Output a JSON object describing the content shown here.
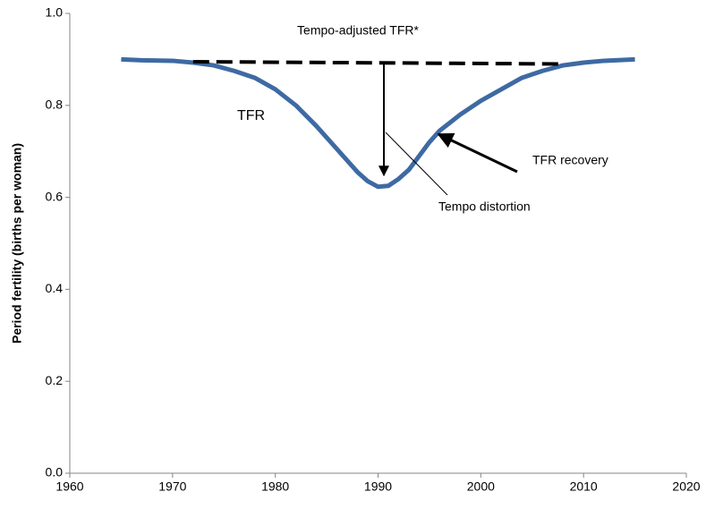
{
  "chart_data": {
    "type": "line",
    "y_label": "Period fertility (births per woman)",
    "xlim": [
      1960,
      2020
    ],
    "xticks": [
      1960,
      1970,
      1980,
      1990,
      2000,
      2010,
      2020
    ],
    "ylim": [
      0,
      1
    ],
    "yticks": [
      {
        "value": 0,
        "label": "0.0"
      },
      0.2,
      0.4,
      0.6,
      0.8,
      {
        "value": 1,
        "label": "1.0"
      }
    ],
    "grid": false,
    "series": [
      {
        "color": "#3e6aa3",
        "dashed": false,
        "x": [
          1965,
          1967,
          1970,
          1972,
          1974,
          1976,
          1978,
          1980,
          1982,
          1984,
          1986,
          1987,
          1988,
          1989,
          1990,
          1991,
          1992,
          1993,
          1994,
          1995,
          1996,
          1998,
          2000,
          2002,
          2004,
          2006,
          2008,
          2010,
          2012,
          2015
        ],
        "values": [
          0.9,
          0.898,
          0.897,
          0.893,
          0.887,
          0.875,
          0.86,
          0.835,
          0.8,
          0.755,
          0.705,
          0.68,
          0.655,
          0.635,
          0.623,
          0.625,
          0.64,
          0.66,
          0.69,
          0.72,
          0.745,
          0.78,
          0.81,
          0.835,
          0.86,
          0.875,
          0.887,
          0.893,
          0.897,
          0.9
        ]
      },
      {
        "color": "#000000",
        "dashed": true,
        "x": [
          1972,
          2008
        ],
        "values": [
          0.895,
          0.89
        ]
      }
    ],
    "annotations": [
      "Tempo-adjusted TFR*",
      "TFR",
      "TFR recovery",
      "Tempo distortion"
    ]
  }
}
